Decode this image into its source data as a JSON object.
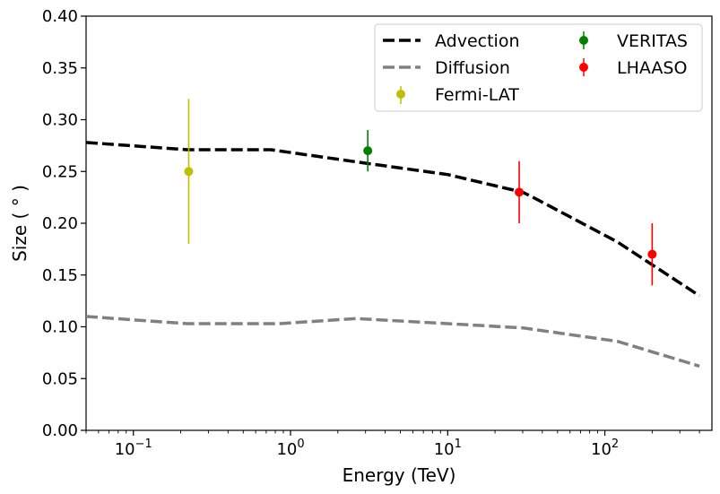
{
  "chart_data": {
    "type": "line",
    "xscale": "log",
    "xlabel": "Energy (TeV)",
    "ylabel": "Size ( ° )",
    "xlim": [
      0.05,
      480
    ],
    "ylim": [
      0.0,
      0.4
    ],
    "xticks": [
      {
        "value": 0.1,
        "base": "10",
        "exp": "−1"
      },
      {
        "value": 1,
        "base": "10",
        "exp": "0"
      },
      {
        "value": 10,
        "base": "10",
        "exp": "1"
      },
      {
        "value": 100,
        "base": "10",
        "exp": "2"
      }
    ],
    "yticks": [
      0.0,
      0.05,
      0.1,
      0.15,
      0.2,
      0.25,
      0.3,
      0.35,
      0.4
    ],
    "ytick_labels": [
      "0.00",
      "0.05",
      "0.10",
      "0.15",
      "0.20",
      "0.25",
      "0.30",
      "0.35",
      "0.40"
    ],
    "lines": [
      {
        "name": "Advection",
        "color": "#000000",
        "style": "dashed",
        "x": [
          0.05,
          0.22,
          0.75,
          3.0,
          10.0,
          30.0,
          34.0,
          120.0,
          400.0
        ],
        "y": [
          0.278,
          0.271,
          0.271,
          0.258,
          0.247,
          0.23,
          0.226,
          0.182,
          0.13
        ]
      },
      {
        "name": "Diffusion",
        "color": "#808080",
        "style": "dashed",
        "x": [
          0.05,
          0.22,
          0.85,
          2.6,
          10.0,
          30.0,
          120.0,
          400.0
        ],
        "y": [
          0.11,
          0.103,
          0.103,
          0.108,
          0.103,
          0.099,
          0.086,
          0.062
        ]
      }
    ],
    "points": [
      {
        "name": "Fermi-LAT",
        "color": "#bfbf00",
        "data": [
          {
            "x": 0.225,
            "y": 0.25,
            "ylow": 0.18,
            "yhigh": 0.32
          }
        ]
      },
      {
        "name": "VERITAS",
        "color": "#008000",
        "data": [
          {
            "x": 3.1,
            "y": 0.27,
            "ylow": 0.25,
            "yhigh": 0.29
          }
        ]
      },
      {
        "name": "LHAASO",
        "color": "#ff0000",
        "data": [
          {
            "x": 28.5,
            "y": 0.23,
            "ylow": 0.2,
            "yhigh": 0.26
          },
          {
            "x": 200.0,
            "y": 0.17,
            "ylow": 0.14,
            "yhigh": 0.2
          }
        ]
      }
    ],
    "legend": {
      "position": "top-right",
      "entries": [
        "Advection",
        "Diffusion",
        "Fermi-LAT",
        "VERITAS",
        "LHAASO"
      ]
    }
  }
}
